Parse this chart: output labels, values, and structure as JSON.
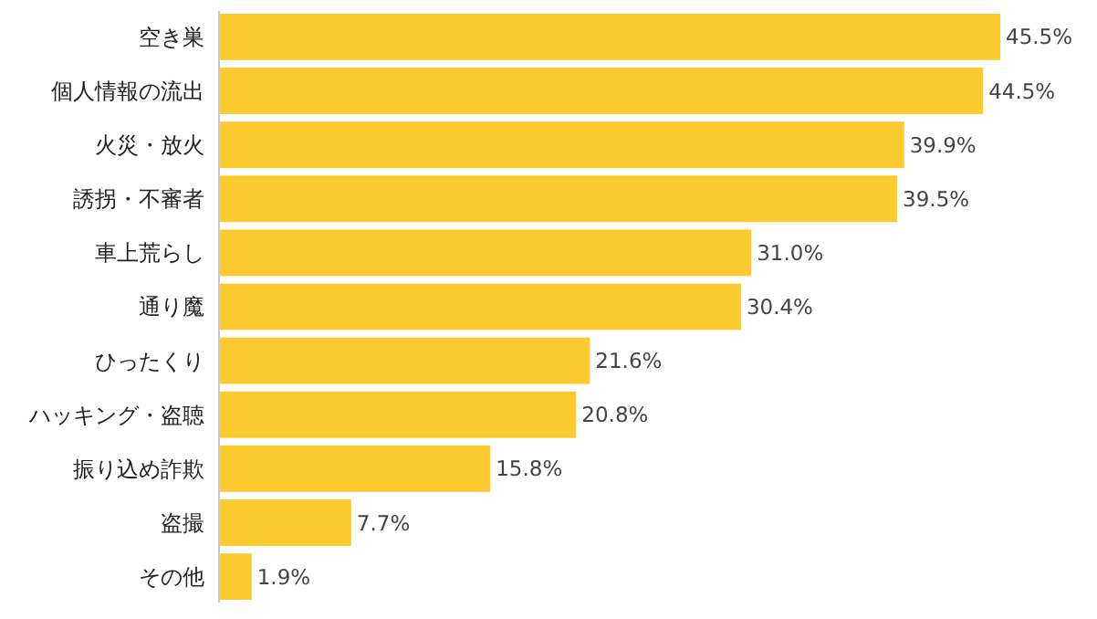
{
  "chart_data": {
    "type": "bar",
    "orientation": "horizontal",
    "categories": [
      "空き巣",
      "個人情報の流出",
      "火災・放火",
      "誘拐・不審者",
      "車上荒らし",
      "通り魔",
      "ひったくり",
      "ハッキング・盗聴",
      "振り込め詐欺",
      "盗撮",
      "その他"
    ],
    "values": [
      45.5,
      44.5,
      39.9,
      39.5,
      31.0,
      30.4,
      21.6,
      20.8,
      15.8,
      7.7,
      1.9
    ],
    "value_labels": [
      "45.5%",
      "44.5%",
      "39.9%",
      "39.5%",
      "31.0%",
      "30.4%",
      "21.6%",
      "20.8%",
      "15.8%",
      "7.7%",
      "1.9%"
    ],
    "color": "#fdca2f"
  }
}
